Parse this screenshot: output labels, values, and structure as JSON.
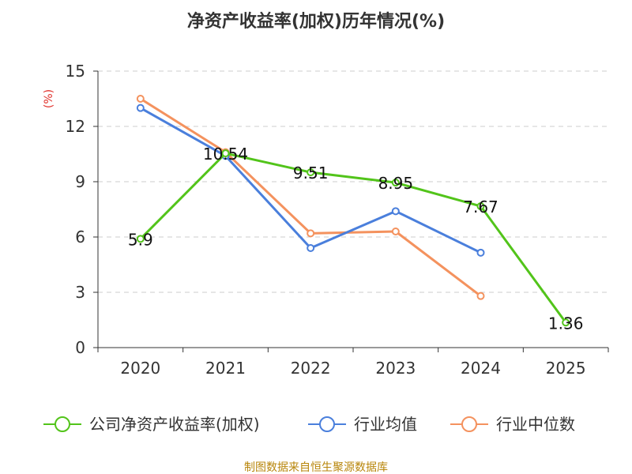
{
  "chart_data": {
    "type": "line",
    "title": "净资产收益率(加权)历年情况(%)",
    "ylabel": "(%)",
    "xlabel": "",
    "categories": [
      "2020",
      "2021",
      "2022",
      "2023",
      "2024",
      "2025"
    ],
    "ylim": [
      0,
      15
    ],
    "yticks": [
      "0",
      "3",
      "6",
      "9",
      "12",
      "15"
    ],
    "grid": true,
    "legend_position": "bottom",
    "series": [
      {
        "name": "公司净资产收益率(加权)",
        "color": "#52c41a",
        "values": [
          5.9,
          10.54,
          9.51,
          8.95,
          7.67,
          1.36
        ],
        "labels": [
          "5.9",
          "10.54",
          "9.51",
          "8.95",
          "7.67",
          "1.36"
        ]
      },
      {
        "name": "行业均值",
        "color": "#4a7fdc",
        "values": [
          13.0,
          10.4,
          5.4,
          7.4,
          5.15,
          null
        ]
      },
      {
        "name": "行业中位数",
        "color": "#f4925e",
        "values": [
          13.5,
          10.6,
          6.2,
          6.3,
          2.8,
          null
        ]
      }
    ]
  },
  "source": "制图数据来自恒生聚源数据库",
  "colors": {
    "ylabel": "#e0302a",
    "source": "#b8860b",
    "axis": "#333333",
    "grid": "#cccccc"
  }
}
